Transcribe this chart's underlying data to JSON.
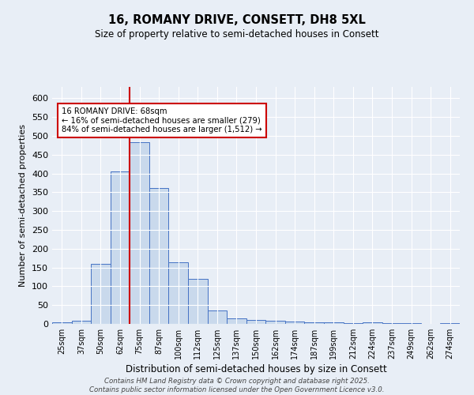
{
  "title_line1": "16, ROMANY DRIVE, CONSETT, DH8 5XL",
  "title_line2": "Size of property relative to semi-detached houses in Consett",
  "xlabel": "Distribution of semi-detached houses by size in Consett",
  "ylabel": "Number of semi-detached properties",
  "categories": [
    "25sqm",
    "37sqm",
    "50sqm",
    "62sqm",
    "75sqm",
    "87sqm",
    "100sqm",
    "112sqm",
    "125sqm",
    "137sqm",
    "150sqm",
    "162sqm",
    "174sqm",
    "187sqm",
    "199sqm",
    "212sqm",
    "224sqm",
    "237sqm",
    "249sqm",
    "262sqm",
    "274sqm"
  ],
  "values": [
    4,
    8,
    160,
    405,
    483,
    362,
    163,
    120,
    35,
    14,
    11,
    9,
    7,
    4,
    4,
    2,
    4,
    2,
    2,
    1,
    2
  ],
  "bar_color": "#c9d9ec",
  "bar_edge_color": "#4472c4",
  "vline_color": "#cc0000",
  "annotation_text": "16 ROMANY DRIVE: 68sqm\n← 16% of semi-detached houses are smaller (279)\n84% of semi-detached houses are larger (1,512) →",
  "annotation_box_color": "#ffffff",
  "annotation_box_edge": "#cc0000",
  "ylim": [
    0,
    630
  ],
  "yticks": [
    0,
    50,
    100,
    150,
    200,
    250,
    300,
    350,
    400,
    450,
    500,
    550,
    600
  ],
  "background_color": "#e8eef6",
  "footer_line1": "Contains HM Land Registry data © Crown copyright and database right 2025.",
  "footer_line2": "Contains public sector information licensed under the Open Government Licence v3.0."
}
